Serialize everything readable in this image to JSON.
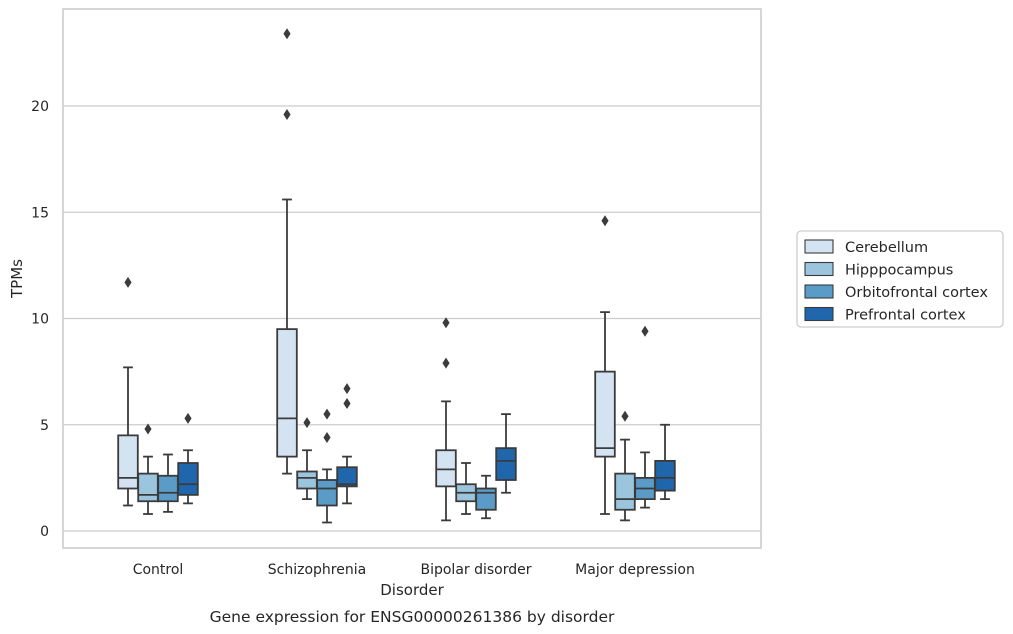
{
  "chart_data": {
    "type": "box",
    "xlabel": "Disorder",
    "ylabel": "TPMs",
    "caption": "Gene expression for ENSG00000261386 by disorder",
    "ylim": [
      -0.8,
      24.6
    ],
    "yticks": [
      0,
      5,
      10,
      15,
      20
    ],
    "grid": "horizontal",
    "legend_position": "right",
    "categories": [
      "Control",
      "Schizophrenia",
      "Bipolar disorder",
      "Major depression"
    ],
    "series": [
      {
        "name": "Cerebellum",
        "color": "#d4e3f2",
        "boxes": [
          {
            "whislo": 1.2,
            "q1": 2.0,
            "med": 2.5,
            "q3": 4.5,
            "whishi": 7.7,
            "fliers": [
              11.7
            ]
          },
          {
            "whislo": 2.7,
            "q1": 3.5,
            "med": 5.3,
            "q3": 9.5,
            "whishi": 15.6,
            "fliers": [
              19.6,
              23.4
            ]
          },
          {
            "whislo": 0.5,
            "q1": 2.1,
            "med": 2.9,
            "q3": 3.8,
            "whishi": 6.1,
            "fliers": [
              7.9,
              9.8
            ]
          },
          {
            "whislo": 0.8,
            "q1": 3.5,
            "med": 3.9,
            "q3": 7.5,
            "whishi": 10.3,
            "fliers": [
              14.6
            ]
          }
        ]
      },
      {
        "name": "Hipppocampus",
        "color": "#9bc4dd",
        "boxes": [
          {
            "whislo": 0.8,
            "q1": 1.4,
            "med": 1.7,
            "q3": 2.7,
            "whishi": 3.5,
            "fliers": [
              4.8
            ]
          },
          {
            "whislo": 1.5,
            "q1": 2.0,
            "med": 2.5,
            "q3": 2.8,
            "whishi": 3.8,
            "fliers": [
              5.1
            ]
          },
          {
            "whislo": 0.8,
            "q1": 1.4,
            "med": 1.8,
            "q3": 2.2,
            "whishi": 3.2,
            "fliers": []
          },
          {
            "whislo": 0.5,
            "q1": 1.0,
            "med": 1.5,
            "q3": 2.7,
            "whishi": 4.3,
            "fliers": [
              5.4
            ]
          }
        ]
      },
      {
        "name": "Orbitofrontal cortex",
        "color": "#5a9bc8",
        "boxes": [
          {
            "whislo": 0.9,
            "q1": 1.4,
            "med": 1.8,
            "q3": 2.6,
            "whishi": 3.6,
            "fliers": []
          },
          {
            "whislo": 0.4,
            "q1": 1.2,
            "med": 2.0,
            "q3": 2.4,
            "whishi": 2.9,
            "fliers": [
              4.4,
              5.5
            ]
          },
          {
            "whislo": 0.6,
            "q1": 1.0,
            "med": 1.8,
            "q3": 2.0,
            "whishi": 2.6,
            "fliers": []
          },
          {
            "whislo": 1.1,
            "q1": 1.5,
            "med": 2.0,
            "q3": 2.5,
            "whishi": 3.7,
            "fliers": [
              9.4
            ]
          }
        ]
      },
      {
        "name": "Prefrontal cortex",
        "color": "#2066ac",
        "boxes": [
          {
            "whislo": 1.3,
            "q1": 1.7,
            "med": 2.2,
            "q3": 3.2,
            "whishi": 3.8,
            "fliers": [
              5.3
            ]
          },
          {
            "whislo": 1.3,
            "q1": 2.1,
            "med": 2.2,
            "q3": 3.0,
            "whishi": 3.5,
            "fliers": [
              6.0,
              6.7
            ]
          },
          {
            "whislo": 1.8,
            "q1": 2.4,
            "med": 3.3,
            "q3": 3.9,
            "whishi": 5.5,
            "fliers": []
          },
          {
            "whislo": 1.5,
            "q1": 1.9,
            "med": 2.5,
            "q3": 3.3,
            "whishi": 5.0,
            "fliers": []
          }
        ]
      }
    ],
    "colors": {
      "box_edge": "#3b3b3b",
      "grid": "#cccccc",
      "frame": "#cccccc",
      "text": "#262626"
    }
  }
}
